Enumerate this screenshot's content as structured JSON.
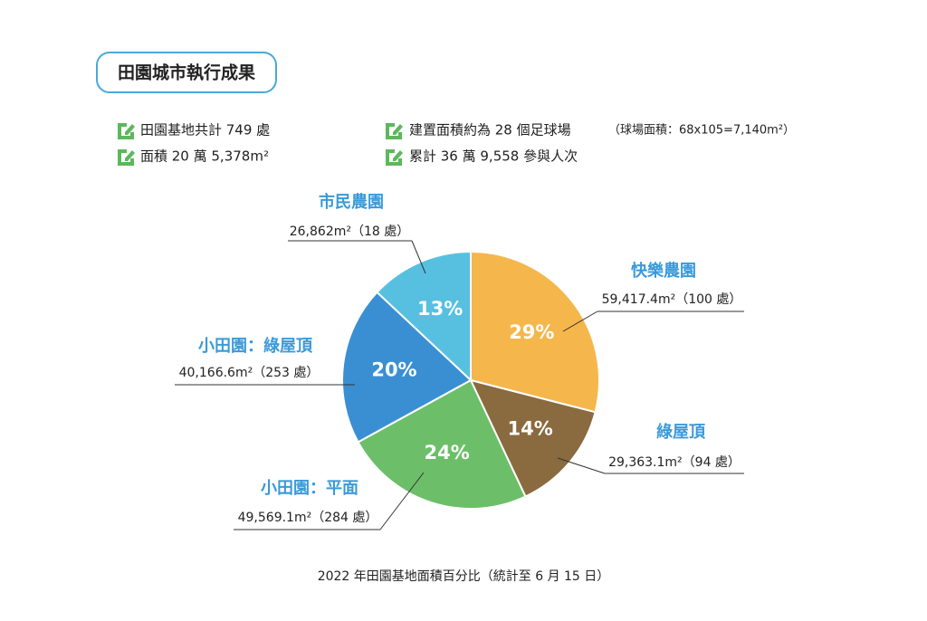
{
  "header": {
    "title": "田園城市執行成果"
  },
  "highlights": [
    "田園基地共計 749 處",
    "面積 20 萬 5,378m²",
    "建置面積約為 28 個足球場",
    "（球場面積：68x105=7,140m²）",
    "累計 36 萬 9,558 參與人次"
  ],
  "chart_data": {
    "type": "pie",
    "categories": [
      "快樂農園",
      "綠屋頂",
      "小田園：平面",
      "小田園：綠屋頂",
      "市民農園"
    ],
    "values": [
      29,
      14,
      24,
      20,
      13
    ],
    "value_labels": [
      "29%",
      "14%",
      "24%",
      "20%",
      "13%"
    ],
    "details": [
      "59,417.4m²（100 處）",
      "29,363.1m²（94 處）",
      "49,569.1m²（284 處）",
      "40,166.6m²（253 處）",
      "26,862m²（18 處）"
    ],
    "colors": [
      "#f5b64b",
      "#8a6a3f",
      "#6cbf68",
      "#3a8fd3",
      "#57c0e0"
    ],
    "caption": "2022 年田園基地面積百分比（統計至 6 月 15 日）"
  }
}
